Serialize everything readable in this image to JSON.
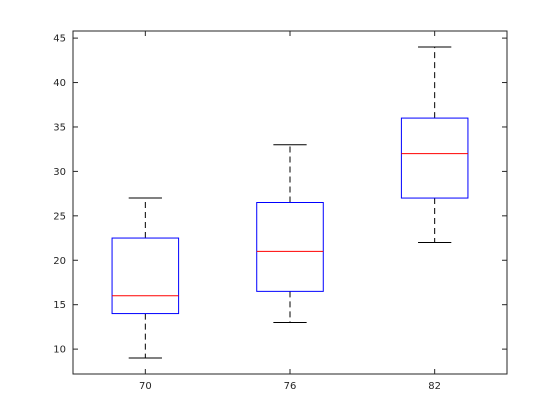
{
  "chart_data": {
    "type": "boxplot",
    "title": "",
    "xlabel": "",
    "ylabel": "",
    "categories": [
      "70",
      "76",
      "82"
    ],
    "boxes": [
      {
        "whisker_low": 9,
        "q1": 14,
        "median": 16,
        "q3": 22.5,
        "whisker_high": 27
      },
      {
        "whisker_low": 13,
        "q1": 16.5,
        "median": 21,
        "q3": 26.5,
        "whisker_high": 33
      },
      {
        "whisker_low": 22,
        "q1": 27,
        "median": 32,
        "q3": 36,
        "whisker_high": 44
      }
    ],
    "ylim": [
      7.2,
      45.8
    ],
    "yticks": [
      10,
      15,
      20,
      25,
      30,
      35,
      40,
      45
    ],
    "ytick_labels": [
      "10",
      "15",
      "20",
      "25",
      "30",
      "35",
      "40",
      "45"
    ],
    "grid": false,
    "colors": {
      "box": "#0000ff",
      "median": "#ff0000",
      "whisker": "#000000",
      "axes": "#262626"
    }
  }
}
